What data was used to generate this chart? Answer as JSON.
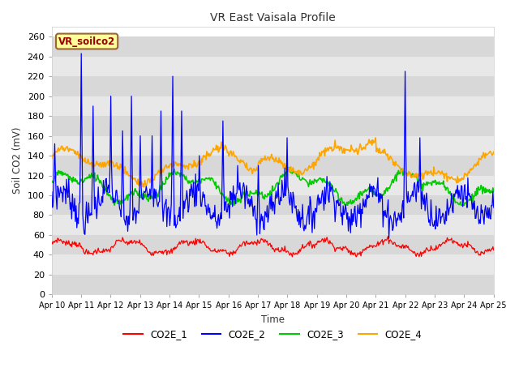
{
  "title": "VR East Vaisala Profile",
  "xlabel": "Time",
  "ylabel": "Soil CO2 (mV)",
  "annotation": "VR_soilco2",
  "ylim": [
    0,
    270
  ],
  "yticks": [
    0,
    20,
    40,
    60,
    80,
    100,
    120,
    140,
    160,
    180,
    200,
    220,
    240,
    260
  ],
  "x_labels": [
    "Apr 10",
    "Apr 11",
    "Apr 12",
    "Apr 13",
    "Apr 14",
    "Apr 15",
    "Apr 16",
    "Apr 17",
    "Apr 18",
    "Apr 19",
    "Apr 20",
    "Apr 21",
    "Apr 22",
    "Apr 23",
    "Apr 24",
    "Apr 25"
  ],
  "colors": {
    "CO2E_1": "#ff0000",
    "CO2E_2": "#0000ff",
    "CO2E_3": "#00cc00",
    "CO2E_4": "#ffa500"
  },
  "bg_color": "#ffffff",
  "plot_bg_color": "#ffffff",
  "grid_colors": [
    "#d8d8d8",
    "#e8e8e8"
  ],
  "annotation_bg": "#ffff99",
  "annotation_fg": "#990000",
  "annotation_border": "#996633",
  "n_points": 600
}
